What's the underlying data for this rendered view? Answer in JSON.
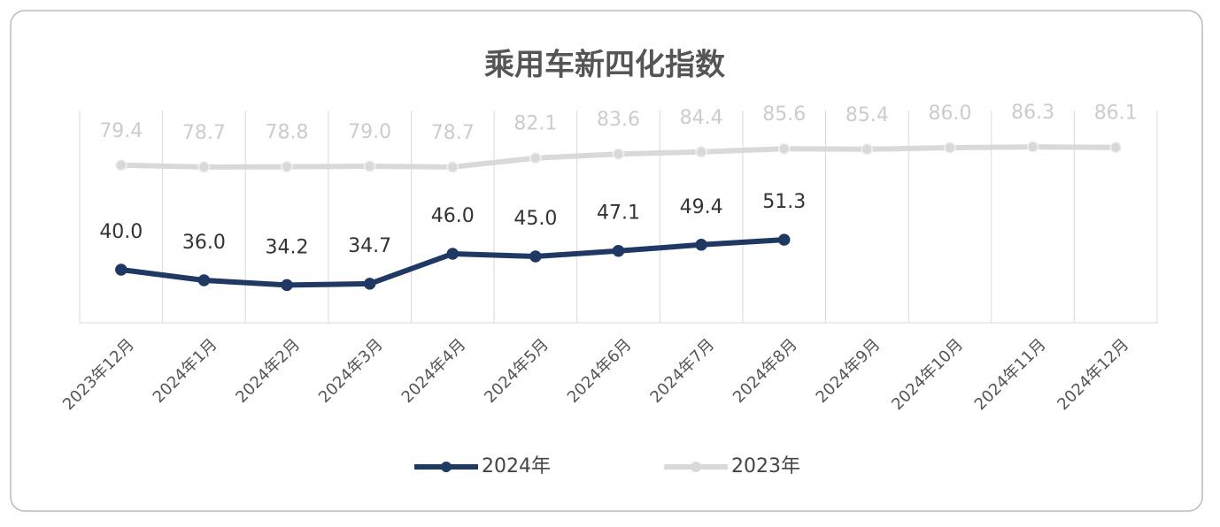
{
  "chart_data": {
    "type": "line",
    "title": "乘用车新四化指数",
    "categories": [
      "2023年12月",
      "2024年1月",
      "2024年2月",
      "2024年3月",
      "2024年4月",
      "2024年5月",
      "2024年6月",
      "2024年7月",
      "2024年8月",
      "2024年9月",
      "2024年10月",
      "2024年11月",
      "2024年12月"
    ],
    "series": [
      {
        "name": "2024年",
        "color": "#1f3864",
        "values": [
          40.0,
          36.0,
          34.2,
          34.7,
          46.0,
          45.0,
          47.1,
          49.4,
          51.3,
          null,
          null,
          null,
          null
        ],
        "value_labels": [
          "40.0",
          "36.0",
          "34.2",
          "34.7",
          "46.0",
          "45.0",
          "47.1",
          "49.4",
          "51.3",
          null,
          null,
          null,
          null
        ]
      },
      {
        "name": "2023年",
        "color": "#d9d9d9",
        "values": [
          79.4,
          78.7,
          78.8,
          79.0,
          78.7,
          82.1,
          83.6,
          84.4,
          85.6,
          85.4,
          86.0,
          86.3,
          86.1
        ],
        "value_labels": [
          "79.4",
          "78.7",
          "78.8",
          "79.0",
          "78.7",
          "82.1",
          "83.6",
          "84.4",
          "85.6",
          "85.4",
          "86.0",
          "86.3",
          "86.1"
        ]
      }
    ],
    "ylim": [
      20,
      100
    ],
    "legend": "bottom"
  }
}
